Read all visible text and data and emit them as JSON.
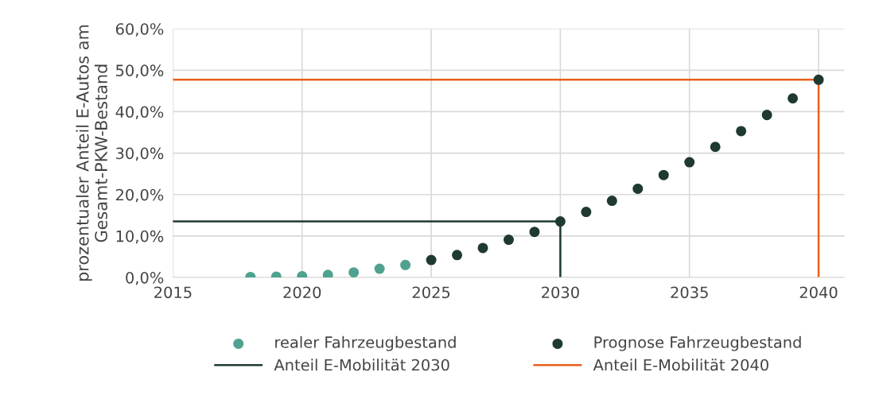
{
  "chart_data": {
    "type": "scatter",
    "ylabel": "prozentualer Anteil E-Autos am Gesamt-PKW-Bestand",
    "series": [
      {
        "name": "realer Fahrzeugbestand",
        "color": "#4fa28f",
        "x": [
          2018,
          2019,
          2020,
          2021,
          2022,
          2023,
          2024
        ],
        "values": [
          0.1,
          0.2,
          0.3,
          0.6,
          1.2,
          2.1,
          3.0
        ]
      },
      {
        "name": "Prognose Fahrzeugbestand",
        "color": "#1f3a30",
        "x": [
          2025,
          2026,
          2027,
          2028,
          2029,
          2030,
          2031,
          2032,
          2033,
          2034,
          2035,
          2036,
          2037,
          2038,
          2039,
          2040
        ],
        "values": [
          4.2,
          5.4,
          7.1,
          9.1,
          11.0,
          13.5,
          15.8,
          18.5,
          21.4,
          24.7,
          27.8,
          31.5,
          35.3,
          39.2,
          43.2,
          47.7
        ]
      },
      {
        "name": "Anteil E-Mobilität 2030",
        "type": "line",
        "marker": "none",
        "color": "#1f3a30",
        "x": [
          2015,
          2030,
          2030
        ],
        "values": [
          13.5,
          13.5,
          0
        ]
      },
      {
        "name": "Anteil E-Mobilität 2040",
        "type": "line",
        "marker": "none",
        "color": "#e8601c",
        "x": [
          2015,
          2040,
          2040
        ],
        "values": [
          47.7,
          47.7,
          0
        ]
      }
    ],
    "xlim": [
      2015,
      2041
    ],
    "xticks": [
      2015,
      2020,
      2025,
      2030,
      2035,
      2040
    ],
    "ylim": [
      0,
      60
    ],
    "yticks": [
      {
        "value": 0,
        "label": "0,0%"
      },
      {
        "value": 10,
        "label": "10,0%"
      },
      {
        "value": 20,
        "label": "20,0%"
      },
      {
        "value": 30,
        "label": "30,0%"
      },
      {
        "value": 40,
        "label": "40,0%"
      },
      {
        "value": 50,
        "label": "50,0%"
      },
      {
        "value": 60,
        "label": "60,0%"
      }
    ],
    "grid": true,
    "legend": "bottom",
    "marker": "circle"
  }
}
